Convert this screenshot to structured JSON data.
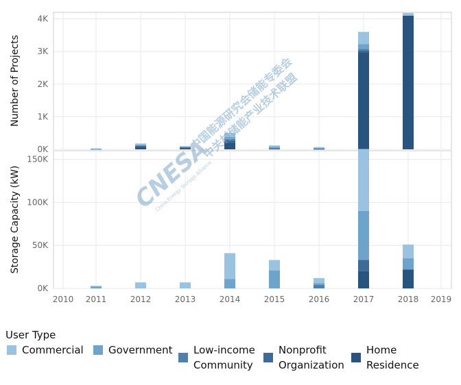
{
  "colors": {
    "Commercial": "#9ac3e1",
    "Government": "#6ea3cc",
    "Low-income Community": "#4f80ad",
    "Nonprofit Organization": "#3d6a98",
    "Home Residence": "#2a5480",
    "grid": "#e8e8e8",
    "frame": "#cccccc"
  },
  "legend": {
    "title": "User Type",
    "items": [
      {
        "key": "Commercial",
        "label": "Commercial"
      },
      {
        "key": "Government",
        "label": "Government"
      },
      {
        "key": "Low-income Community",
        "label": "Low-income\nCommunity"
      },
      {
        "key": "Nonprofit Organization",
        "label": "Nonprofit\nOrganization"
      },
      {
        "key": "Home Residence",
        "label": "Home\nResidence"
      }
    ]
  },
  "watermark": {
    "logo": "CNESA",
    "line1": "中国能源研究会储能专委会",
    "line2": "中关村储能产业技术联盟",
    "sub": "China Energy Storage Alliance"
  },
  "chart_data": [
    {
      "type": "bar",
      "stacked": true,
      "ylabel": "Number of Projects",
      "ylim": [
        0,
        4200
      ],
      "yticks": [
        0,
        1000,
        2000,
        3000,
        4000
      ],
      "yticklabels": [
        "0K",
        "1K",
        "2K",
        "3K",
        "4K"
      ],
      "grid": true,
      "categories": [
        "2010",
        "2011",
        "2012",
        "2013",
        "2014",
        "2015",
        "2016",
        "2017",
        "2018",
        "2019"
      ],
      "series": [
        {
          "name": "Home Residence",
          "values": [
            0,
            5,
            80,
            40,
            200,
            15,
            10,
            2980,
            4100,
            0
          ]
        },
        {
          "name": "Nonprofit Organization",
          "values": [
            0,
            0,
            30,
            20,
            80,
            10,
            5,
            60,
            0,
            0
          ]
        },
        {
          "name": "Low-income Community",
          "values": [
            0,
            0,
            10,
            10,
            40,
            15,
            10,
            40,
            0,
            0
          ]
        },
        {
          "name": "Government",
          "values": [
            0,
            5,
            20,
            10,
            60,
            40,
            20,
            150,
            0,
            0
          ]
        },
        {
          "name": "Commercial",
          "values": [
            0,
            20,
            40,
            20,
            120,
            40,
            25,
            370,
            80,
            0
          ]
        }
      ]
    },
    {
      "type": "bar",
      "stacked": true,
      "ylabel": "Storage Capacity (kW)",
      "xlabel": "",
      "ylim": [
        0,
        160000
      ],
      "yticks": [
        0,
        50000,
        100000,
        150000
      ],
      "yticklabels": [
        "0K",
        "50K",
        "100K",
        "150K"
      ],
      "grid": true,
      "categories": [
        "2010",
        "2011",
        "2012",
        "2013",
        "2014",
        "2015",
        "2016",
        "2017",
        "2018",
        "2019"
      ],
      "series": [
        {
          "name": "Home Residence",
          "values": [
            0,
            0,
            0,
            0,
            0,
            0,
            0,
            20000,
            22000,
            0
          ]
        },
        {
          "name": "Nonprofit Organization",
          "values": [
            0,
            0,
            0,
            0,
            0,
            0,
            0,
            13000,
            0,
            0
          ]
        },
        {
          "name": "Low-income Community",
          "values": [
            0,
            0,
            0,
            0,
            0,
            0,
            4000,
            0,
            0,
            0
          ]
        },
        {
          "name": "Government",
          "values": [
            0,
            2000,
            0,
            0,
            11000,
            21000,
            2000,
            57000,
            13000,
            0
          ]
        },
        {
          "name": "Commercial",
          "values": [
            0,
            1000,
            7000,
            7000,
            30000,
            12000,
            6000,
            72000,
            16000,
            0
          ]
        }
      ]
    }
  ]
}
